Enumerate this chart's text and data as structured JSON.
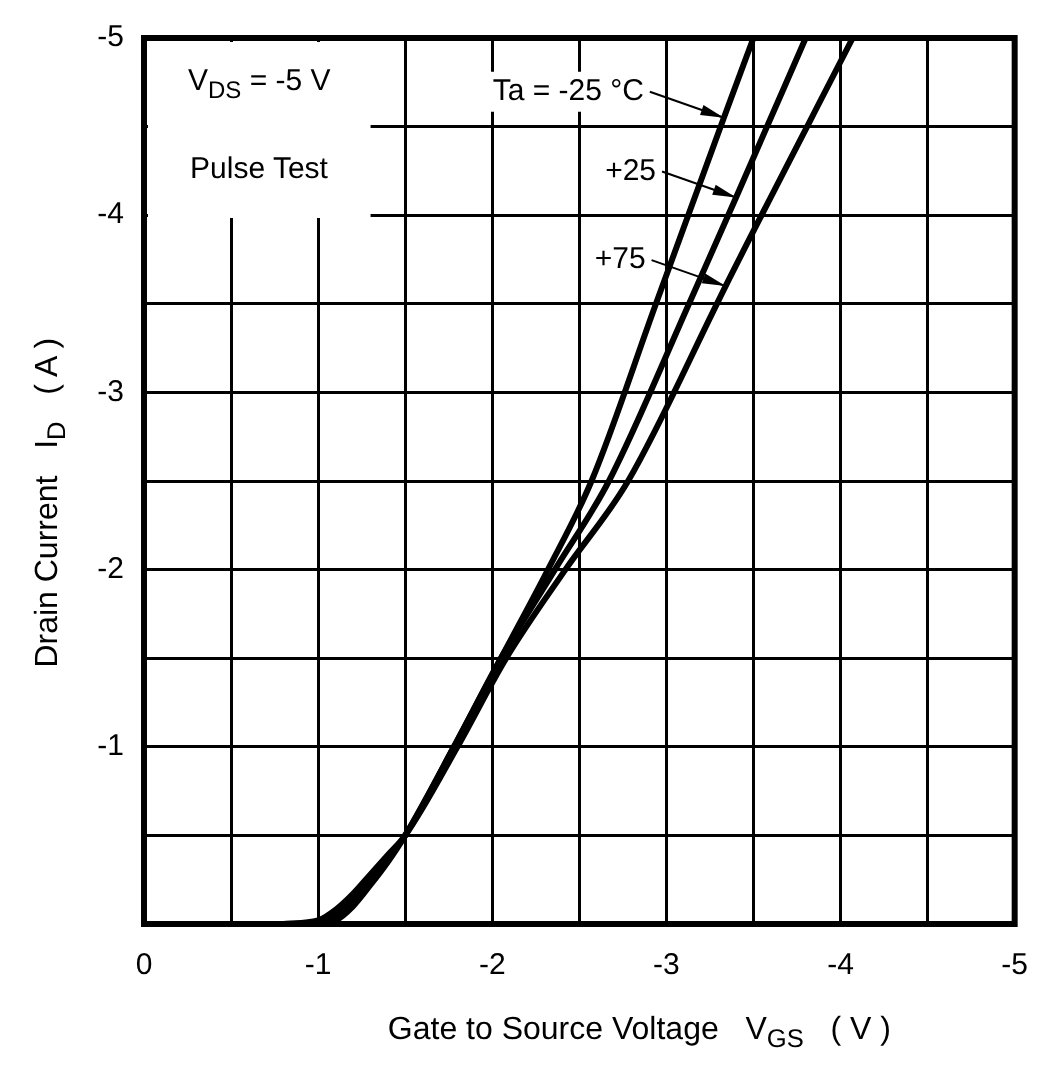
{
  "chart_data": {
    "type": "line",
    "xlabel": "Gate to Source Voltage   V$_{GS}$   ( V )",
    "ylabel": "Drain Current   I$_{D}$   ( A )",
    "annotations": [
      "V$_{DS}$ = -5 V",
      "Pulse Test"
    ],
    "xlim": [
      0,
      -5
    ],
    "ylim": [
      0,
      -5
    ],
    "xticks": [
      0,
      {
        "value": -0.5,
        "label": null
      },
      -1,
      {
        "value": -1.5,
        "label": null
      },
      -2,
      {
        "value": -2.5,
        "label": null
      },
      -3,
      {
        "value": -3.5,
        "label": null
      },
      -4,
      {
        "value": -4.5,
        "label": null
      },
      -5
    ],
    "yticks": [
      {
        "value": 0,
        "label": null
      },
      {
        "value": -0.5,
        "label": null
      },
      -1,
      {
        "value": -1.5,
        "label": null
      },
      -2,
      {
        "value": -2.5,
        "label": null
      },
      -3,
      {
        "value": -3.5,
        "label": null
      },
      -4,
      {
        "value": -4.5,
        "label": null
      },
      -5
    ],
    "grid": true,
    "legend": "top right",
    "series": [
      {
        "name": "Ta = -25 °C",
        "color": "#000000",
        "x": [
          -0.8,
          -1.0,
          -1.1,
          -1.2,
          -1.3,
          -1.4,
          -1.5,
          -1.78,
          -2.05,
          -2.32,
          -2.57,
          -2.94,
          -3.33,
          -3.5
        ],
        "values": [
          0,
          0,
          -0.02,
          -0.1,
          -0.22,
          -0.35,
          -0.5,
          -1.0,
          -1.5,
          -2.0,
          -2.5,
          -3.5,
          -4.55,
          -5
        ]
      },
      {
        "name": "+25",
        "color": "#000000",
        "x": [
          -0.8,
          -1.0,
          -1.1,
          -1.2,
          -1.3,
          -1.4,
          -1.5,
          -1.78,
          -2.05,
          -2.36,
          -2.67,
          -3.13,
          -3.4,
          -3.8
        ],
        "values": [
          0,
          -0.01,
          -0.05,
          -0.13,
          -0.25,
          -0.37,
          -0.5,
          -1.0,
          -1.5,
          -2.0,
          -2.5,
          -3.5,
          -4.1,
          -5
        ]
      },
      {
        "name": "+75",
        "color": "#000000",
        "x": [
          -0.8,
          -1.0,
          -1.1,
          -1.2,
          -1.3,
          -1.4,
          -1.5,
          -1.8,
          -2.08,
          -2.42,
          -2.78,
          -3.29,
          -3.34,
          -4.07
        ],
        "values": [
          0,
          -0.02,
          -0.08,
          -0.17,
          -0.28,
          -0.39,
          -0.5,
          -1.0,
          -1.5,
          -2.0,
          -2.5,
          -3.5,
          -3.6,
          -5
        ]
      }
    ]
  }
}
